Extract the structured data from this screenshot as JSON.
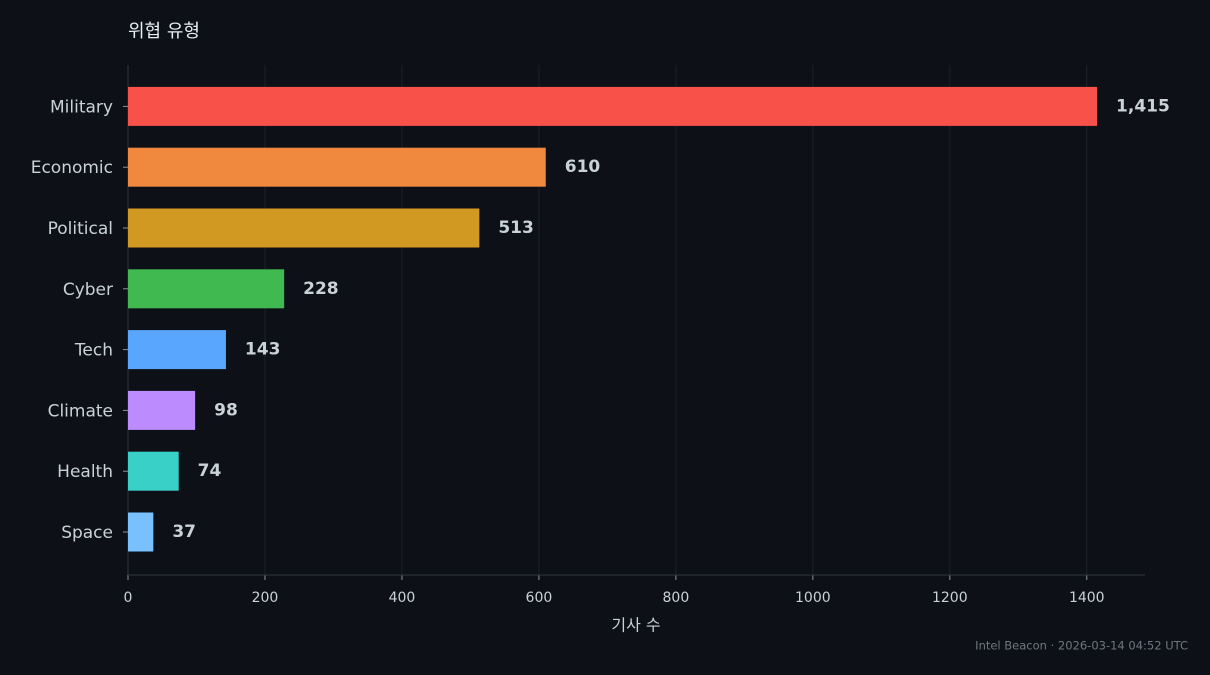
{
  "chart_data": {
    "type": "bar",
    "orientation": "horizontal",
    "title": "위협 유형",
    "x_label": "기사 수",
    "footer": "Intel Beacon · 2026-03-14 04:52 UTC",
    "categories": [
      "Military",
      "Economic",
      "Political",
      "Cyber",
      "Tech",
      "Climate",
      "Health",
      "Space"
    ],
    "values": [
      1415,
      610,
      513,
      228,
      143,
      98,
      74,
      37
    ],
    "value_labels": [
      "1,415",
      "610",
      "513",
      "228",
      "143",
      "98",
      "74",
      "37"
    ],
    "colors": [
      "#f85149",
      "#f0883e",
      "#d29922",
      "#3fb950",
      "#58a6ff",
      "#bc8cff",
      "#39d0c8",
      "#79c0ff"
    ],
    "xlim": [
      0,
      1485
    ],
    "xticks": [
      0,
      200,
      400,
      600,
      800,
      1000,
      1200,
      1400
    ],
    "grid": true
  }
}
